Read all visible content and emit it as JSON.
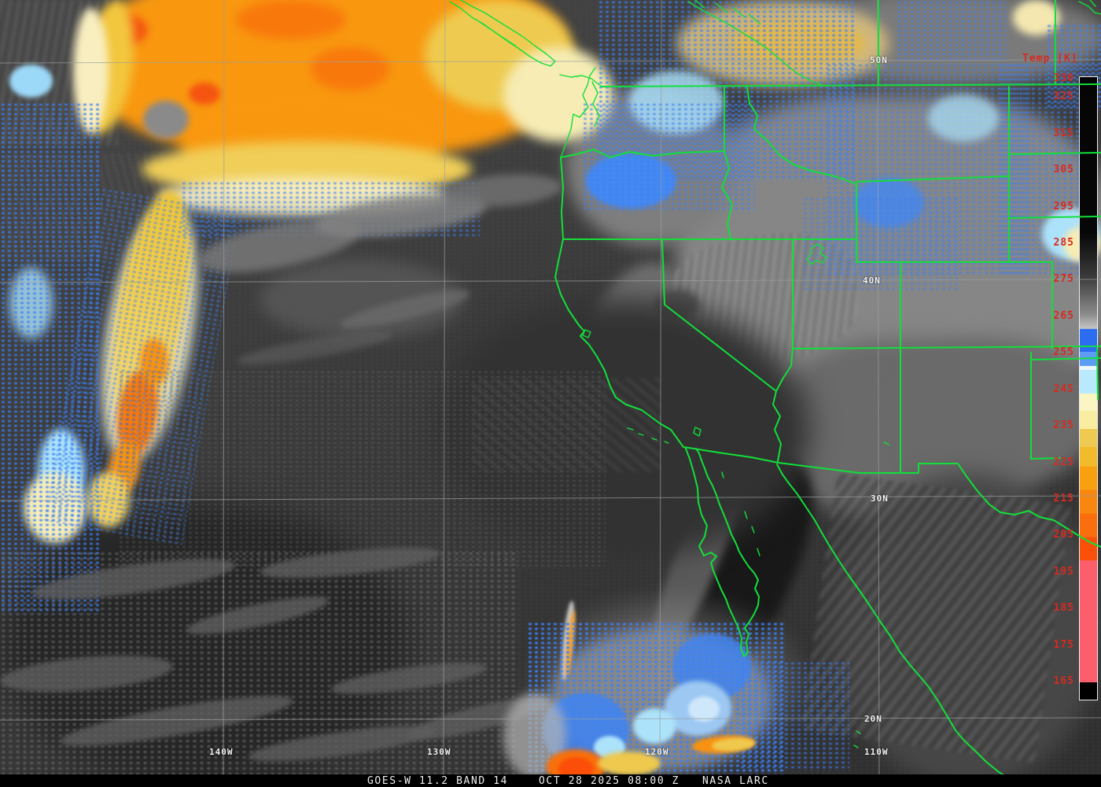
{
  "caption": {
    "product": "GOES-W 11.2 BAND 14",
    "timestamp": "OCT 28 2025 08:00 Z",
    "credit": "NASA LARC"
  },
  "colorbar": {
    "title": "Temp [K]",
    "unit": "K",
    "ticks": [
      "330",
      "325",
      "315",
      "305",
      "295",
      "285",
      "275",
      "265",
      "255",
      "245",
      "235",
      "225",
      "215",
      "205",
      "195",
      "185",
      "175",
      "165"
    ]
  },
  "grid": {
    "latitudes": [
      "50N",
      "40N",
      "30N",
      "20N"
    ],
    "longitudes": [
      "140W",
      "130W",
      "120W",
      "110W"
    ]
  },
  "palette": {
    "border_green": "#12df3a",
    "grid_gray": "#9aa0a0",
    "tick_red": "#d82a20",
    "label_white": "#f2f2f2",
    "cold_blue": "#3c80f8",
    "cold_cyan": "#ace2fa",
    "cold_cream": "#f8f0c2",
    "cold_yellow": "#eec94e",
    "cold_gold": "#f2bb2b",
    "cold_orange": "#f9920e",
    "cold_deep_orange": "#fa560a",
    "cold_pink": "#fc5f6b",
    "land_gray": "#868686",
    "ocean_gray": "#3c3c3c",
    "gulf_dark": "#181818"
  }
}
